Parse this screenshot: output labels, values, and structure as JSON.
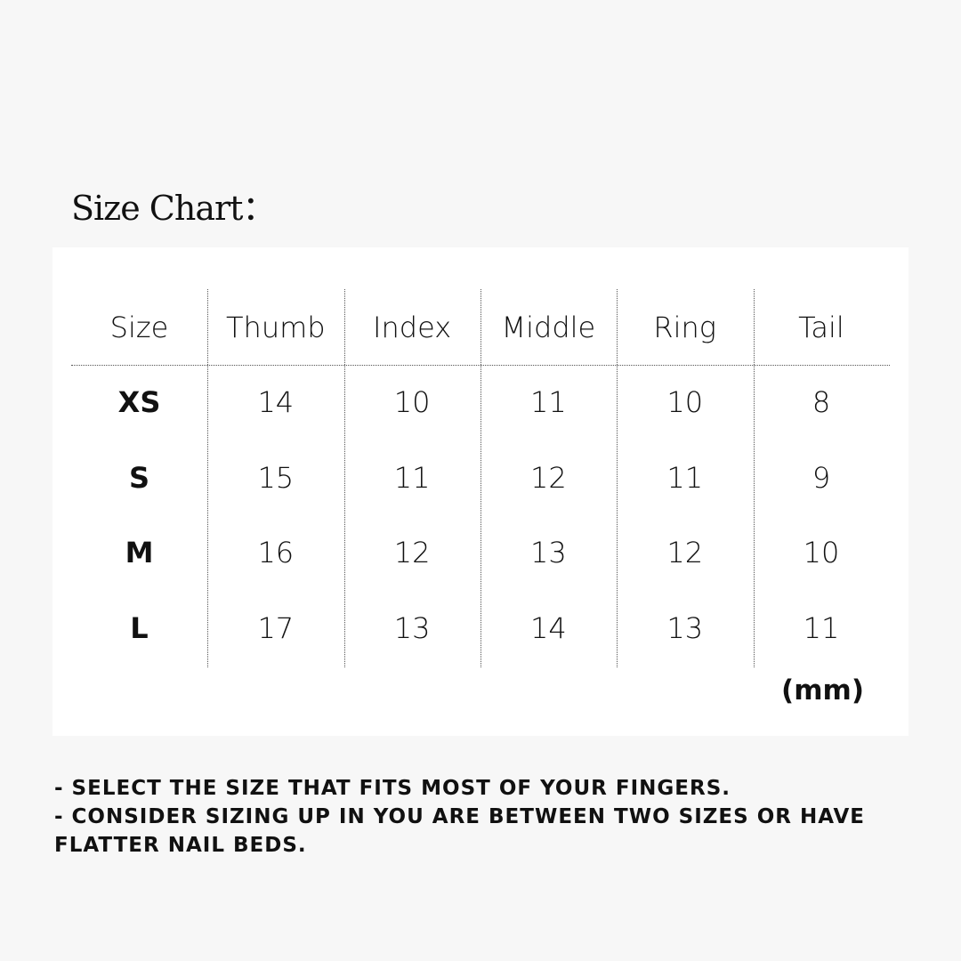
{
  "title": "Size Chart：",
  "table": {
    "headers": [
      "Size",
      "Thumb",
      "Index",
      "Middle",
      "Ring",
      "Tail"
    ],
    "rows": [
      [
        "XS",
        "14",
        "10",
        "11",
        "10",
        "8"
      ],
      [
        "S",
        "15",
        "11",
        "12",
        "11",
        "9"
      ],
      [
        "M",
        "16",
        "12",
        "13",
        "12",
        "10"
      ],
      [
        "L",
        "17",
        "13",
        "14",
        "13",
        "11"
      ]
    ],
    "unit": "(mm)"
  },
  "notes": [
    "- SELECT THE SIZE THAT FITS MOST OF YOUR FINGERS.",
    "- CONSIDER SIZING UP IN YOU ARE BETWEEN TWO SIZES OR HAVE FLATTER NAIL BEDS."
  ]
}
